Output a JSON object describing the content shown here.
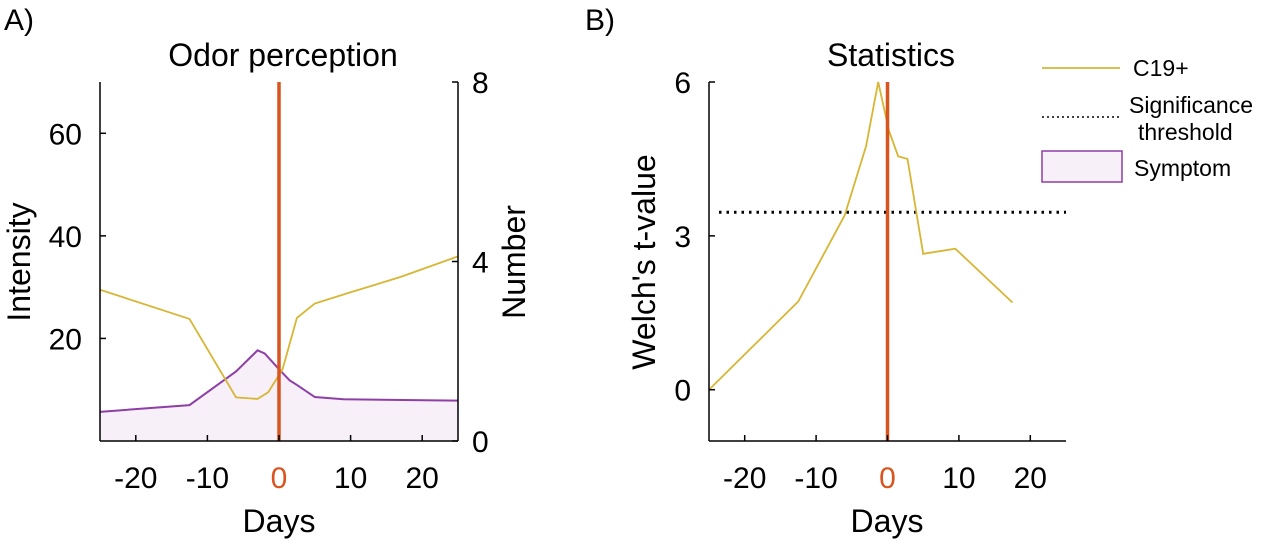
{
  "panel_labels": {
    "a": "A)",
    "b": "B)"
  },
  "colors": {
    "c19": "#D6B634",
    "symptom_line": "#8E3FA6",
    "symptom_fill": "#F7F0F8",
    "day_zero": "#D9541E",
    "threshold": "#000000"
  },
  "legend": {
    "c19": "C19+",
    "threshold_line1": "Significance",
    "threshold_line2": "threshold",
    "symptom": "Symptom"
  },
  "chart_data": [
    {
      "type": "line",
      "title": "Odor perception",
      "xlabel": "Days",
      "ylabel": "Intensity",
      "y2label": "Number",
      "xlim": [
        -25,
        25
      ],
      "ylim": [
        0,
        70
      ],
      "y2lim": [
        0,
        8
      ],
      "xticks": [
        -20,
        -10,
        0,
        10,
        20
      ],
      "yticks": [
        20,
        40,
        60
      ],
      "y2ticks": [
        0,
        4,
        8
      ],
      "day_zero_label": "0",
      "series": [
        {
          "name": "C19+",
          "axis": "left",
          "x": [
            -25,
            -12.5,
            -6,
            -3,
            -1.5,
            0.5,
            2.5,
            5,
            10,
            17,
            25
          ],
          "y": [
            29.5,
            23.8,
            8.5,
            8.2,
            9.5,
            14,
            24,
            26.8,
            29,
            32,
            36
          ]
        },
        {
          "name": "Symptom",
          "axis": "right",
          "kind": "area",
          "x": [
            -25,
            -12.5,
            -6,
            -3,
            -2,
            0,
            1.5,
            2.5,
            5,
            9,
            25
          ],
          "y": [
            0.65,
            0.8,
            1.55,
            2.02,
            1.95,
            1.6,
            1.35,
            1.25,
            0.98,
            0.93,
            0.9
          ]
        }
      ]
    },
    {
      "type": "line",
      "title": "Statistics",
      "xlabel": "Days",
      "ylabel": "Welch's t-value",
      "xlim": [
        -25,
        25
      ],
      "ylim": [
        -1,
        6
      ],
      "xticks": [
        -20,
        -10,
        0,
        10,
        20
      ],
      "yticks": [
        0,
        3,
        6
      ],
      "day_zero_label": "0",
      "threshold": 3.46,
      "series": [
        {
          "name": "C19+",
          "x": [
            -25,
            -12.5,
            -6,
            -3,
            -1.3,
            0.2,
            1.5,
            2.8,
            5,
            9.5,
            17.5
          ],
          "y": [
            0,
            1.72,
            3.4,
            4.75,
            6.0,
            5.05,
            4.55,
            4.5,
            2.65,
            2.75,
            1.7
          ]
        }
      ]
    }
  ]
}
